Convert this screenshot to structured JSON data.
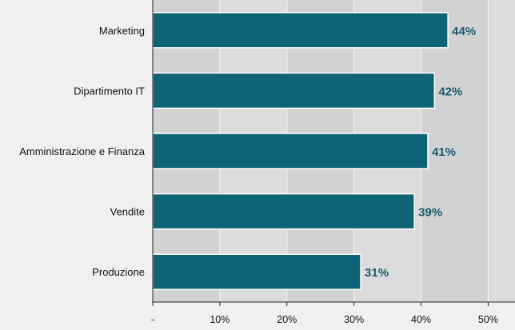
{
  "chart_data": {
    "type": "bar",
    "orientation": "horizontal",
    "categories": [
      "Marketing",
      "Dipartimento IT",
      "Amministrazione e Finanza",
      "Vendite",
      "Produzione"
    ],
    "values": [
      44,
      42,
      41,
      39,
      31
    ],
    "value_labels": [
      "44%",
      "42%",
      "41%",
      "39%",
      "31%"
    ],
    "xlim": [
      0,
      54
    ],
    "x_ticks": [
      0,
      10,
      20,
      30,
      40,
      50
    ],
    "x_tick_labels": [
      "-",
      "10%",
      "20%",
      "30%",
      "40%",
      "50%"
    ],
    "grid": true,
    "legend": "none"
  },
  "colors": {
    "bar_fill": "#0e6375",
    "bar_stroke": "#ffffff",
    "value_label": "#1a5a70",
    "plot_background": "#d2d2d2",
    "plot_background_alt": "#dcdcdc",
    "grid_line": "#f5f5f5",
    "page_background": "#f0f0f0"
  }
}
